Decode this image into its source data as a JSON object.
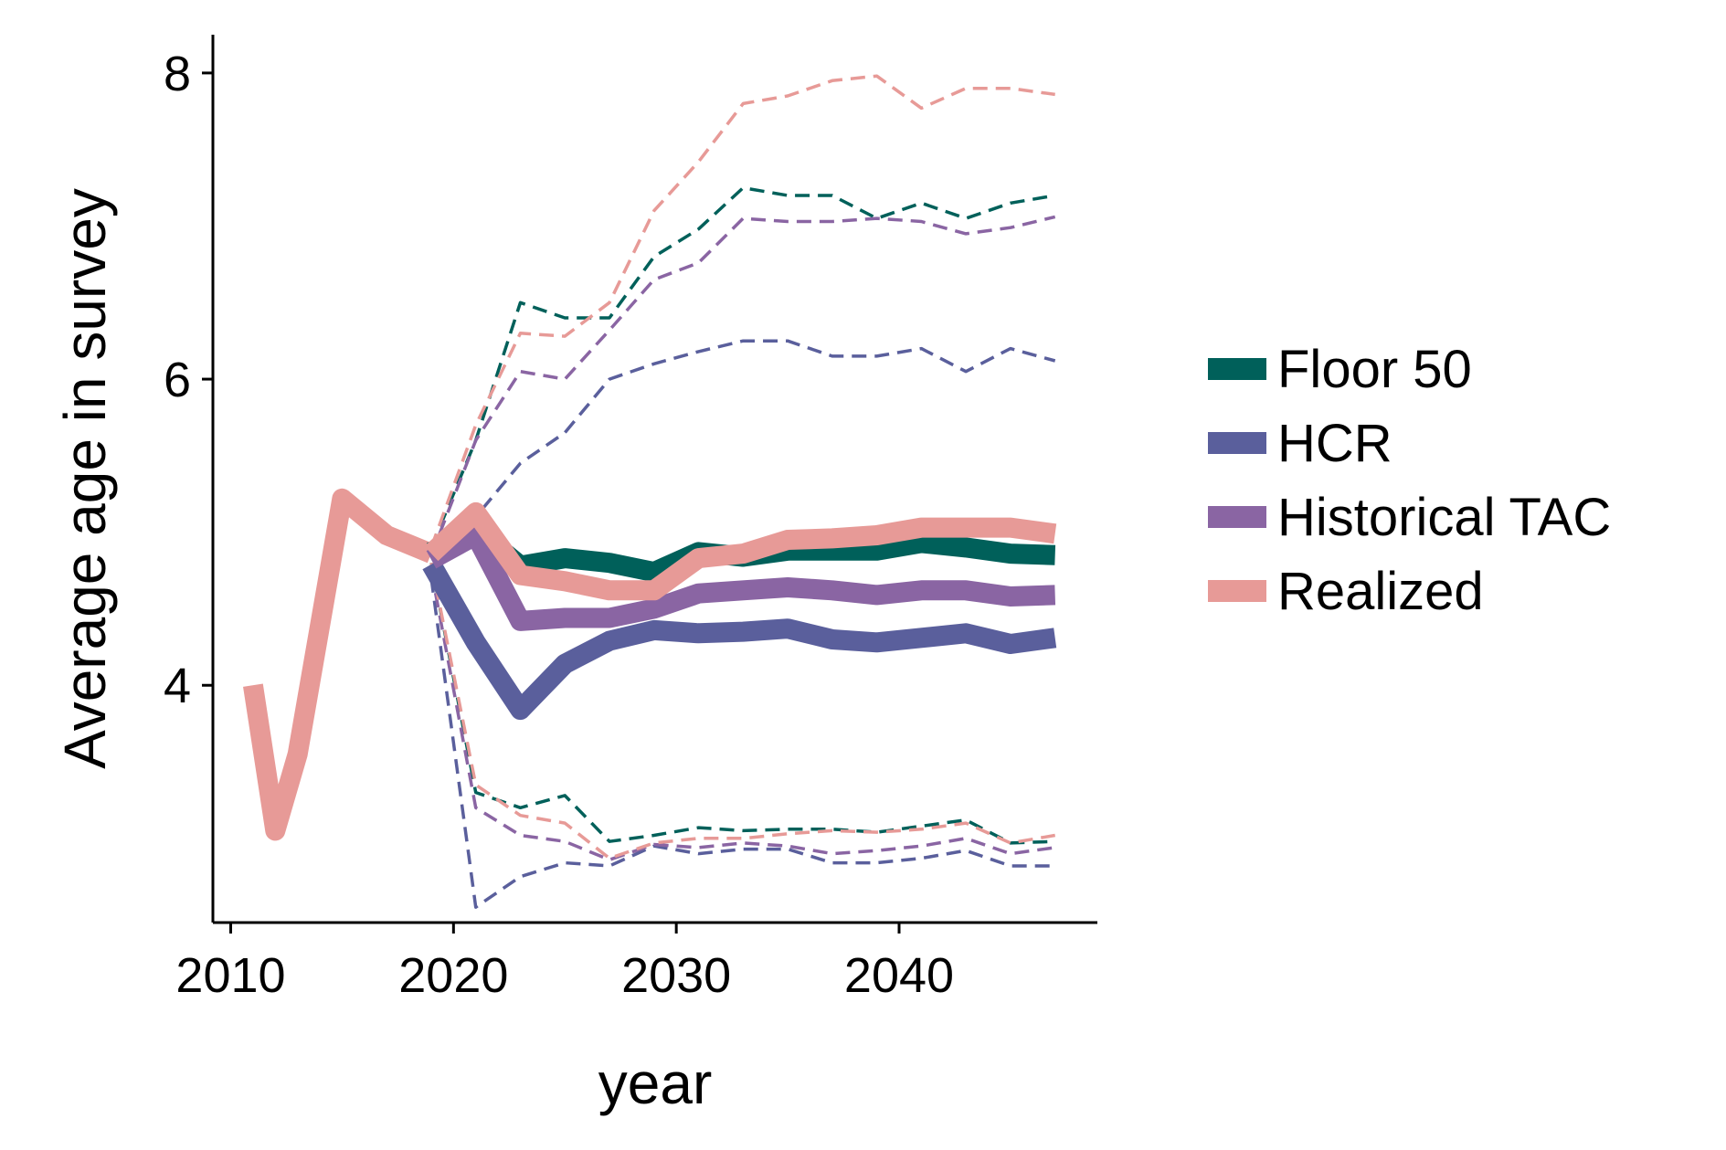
{
  "chart_data": {
    "type": "line",
    "title": "",
    "xlabel": "year",
    "ylabel": "Average age in survey",
    "xlim": [
      2009.2,
      2048.9
    ],
    "ylim": [
      2.45,
      8.25
    ],
    "x_ticks": [
      2010,
      2020,
      2030,
      2040
    ],
    "y_ticks": [
      4,
      6,
      8
    ],
    "x_tick_labels": [
      "2010",
      "2020",
      "2030",
      "2040"
    ],
    "y_tick_labels": [
      "4",
      "6",
      "8"
    ],
    "grid": false,
    "legend_position": "right",
    "colors": {
      "Floor 50": "#00605a",
      "HCR": "#5a5f9c",
      "Historical TAC": "#8a65a3",
      "Realized": "#e79a97"
    },
    "legend": [
      "Floor 50",
      "HCR",
      "Historical TAC",
      "Realized"
    ],
    "historical": {
      "x": [
        2011,
        2012,
        2013,
        2015,
        2017,
        2019
      ],
      "y": [
        4.0,
        3.05,
        3.55,
        5.22,
        4.98,
        4.86
      ]
    },
    "series": [
      {
        "name": "Floor 50",
        "x": [
          2019,
          2021,
          2023,
          2025,
          2027,
          2029,
          2031,
          2033,
          2035,
          2037,
          2039,
          2041,
          2043,
          2045,
          2047
        ],
        "median": [
          4.87,
          5.02,
          4.78,
          4.83,
          4.8,
          4.74,
          4.87,
          4.84,
          4.88,
          4.88,
          4.88,
          4.93,
          4.9,
          4.86,
          4.85
        ],
        "upper": [
          4.9,
          5.6,
          6.5,
          6.4,
          6.4,
          6.8,
          6.98,
          7.25,
          7.2,
          7.2,
          7.05,
          7.15,
          7.05,
          7.15,
          7.2
        ],
        "lower": [
          4.8,
          3.3,
          3.2,
          3.28,
          2.98,
          3.02,
          3.07,
          3.05,
          3.06,
          3.06,
          3.04,
          3.08,
          3.12,
          2.97,
          2.98
        ]
      },
      {
        "name": "HCR",
        "x": [
          2019,
          2021,
          2023,
          2025,
          2027,
          2029,
          2031,
          2033,
          2035,
          2037,
          2039,
          2041,
          2043,
          2045,
          2047
        ],
        "median": [
          4.79,
          4.28,
          3.84,
          4.14,
          4.29,
          4.36,
          4.34,
          4.35,
          4.37,
          4.3,
          4.28,
          4.31,
          4.34,
          4.27,
          4.31
        ],
        "upper": [
          4.85,
          5.1,
          5.45,
          5.65,
          6.0,
          6.1,
          6.18,
          6.25,
          6.25,
          6.15,
          6.15,
          6.2,
          6.05,
          6.2,
          6.12
        ],
        "lower": [
          4.7,
          2.55,
          2.75,
          2.84,
          2.82,
          2.95,
          2.9,
          2.93,
          2.93,
          2.84,
          2.84,
          2.87,
          2.92,
          2.82,
          2.82
        ]
      },
      {
        "name": "Historical TAC",
        "x": [
          2019,
          2021,
          2023,
          2025,
          2027,
          2029,
          2031,
          2033,
          2035,
          2037,
          2039,
          2041,
          2043,
          2045,
          2047
        ],
        "median": [
          4.82,
          4.98,
          4.42,
          4.44,
          4.44,
          4.5,
          4.6,
          4.62,
          4.64,
          4.62,
          4.59,
          4.62,
          4.62,
          4.58,
          4.59
        ],
        "upper": [
          4.85,
          5.6,
          6.05,
          6.0,
          6.32,
          6.65,
          6.76,
          7.05,
          7.03,
          7.03,
          7.05,
          7.03,
          6.95,
          6.99,
          7.06
        ],
        "lower": [
          4.75,
          3.2,
          3.02,
          2.98,
          2.86,
          2.96,
          2.94,
          2.97,
          2.95,
          2.9,
          2.92,
          2.95,
          3.0,
          2.9,
          2.94
        ]
      },
      {
        "name": "Realized",
        "x": [
          2019,
          2021,
          2023,
          2025,
          2027,
          2029,
          2031,
          2033,
          2035,
          2037,
          2039,
          2041,
          2043,
          2045,
          2047
        ],
        "median": [
          4.86,
          5.13,
          4.72,
          4.68,
          4.62,
          4.62,
          4.83,
          4.86,
          4.95,
          4.96,
          4.98,
          5.03,
          5.03,
          5.03,
          4.99
        ],
        "upper": [
          4.9,
          5.7,
          6.3,
          6.28,
          6.5,
          7.1,
          7.42,
          7.8,
          7.85,
          7.95,
          7.98,
          7.77,
          7.9,
          7.9,
          7.86
        ],
        "lower": [
          4.8,
          3.35,
          3.15,
          3.1,
          2.87,
          2.97,
          3.0,
          3.0,
          3.03,
          3.05,
          3.04,
          3.06,
          3.1,
          2.97,
          3.02
        ]
      }
    ]
  }
}
